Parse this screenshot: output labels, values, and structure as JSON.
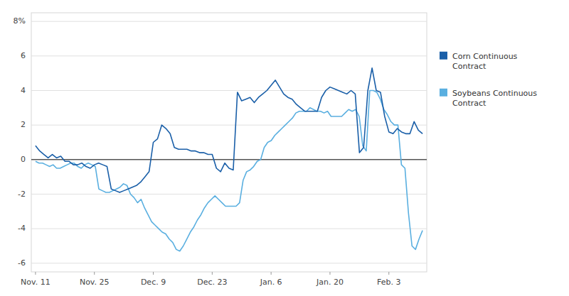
{
  "chart_data": {
    "type": "line",
    "xlim": [
      -1,
      93
    ],
    "xticks": [
      {
        "value": 0,
        "label": "Nov. 11"
      },
      {
        "value": 14,
        "label": "Nov. 25"
      },
      {
        "value": 28,
        "label": "Dec. 9"
      },
      {
        "value": 42,
        "label": "Dec. 23"
      },
      {
        "value": 56,
        "label": "Jan. 6"
      },
      {
        "value": 70,
        "label": "Jan. 20"
      },
      {
        "value": 84,
        "label": "Feb. 3"
      }
    ],
    "ylim": [
      -6.5,
      8.5
    ],
    "yticks": [
      -6,
      -4,
      -2,
      0,
      2,
      4,
      6,
      {
        "value": 8,
        "label": "8%"
      }
    ],
    "grid": true,
    "legend": "right",
    "series": [
      {
        "name": "Corn Continuous\nContract",
        "color": "#1a5fa8",
        "x": [
          0,
          1,
          2,
          3,
          4,
          5,
          6,
          7,
          8,
          9,
          10,
          11,
          12,
          13,
          14,
          15,
          16,
          17,
          18,
          19,
          20,
          21,
          22,
          23,
          24,
          25,
          26,
          27,
          28,
          29,
          30,
          31,
          32,
          33,
          34,
          35,
          36,
          37,
          38,
          39,
          40,
          41,
          42,
          43,
          44,
          45,
          46,
          47,
          48,
          49,
          50,
          51,
          52,
          53,
          54,
          55,
          56,
          57,
          58,
          59,
          60,
          61,
          62,
          63,
          64,
          65,
          66,
          67,
          68,
          69,
          70,
          71,
          72,
          73,
          74,
          75,
          76,
          77,
          78,
          79,
          80,
          81,
          82,
          83,
          84,
          85,
          86,
          87,
          88,
          89,
          90,
          91,
          92
        ],
        "values": [
          0.8,
          0.5,
          0.3,
          0.1,
          0.3,
          0.1,
          0.2,
          -0.1,
          -0.1,
          -0.3,
          -0.3,
          -0.2,
          -0.4,
          -0.5,
          -0.3,
          -0.2,
          -0.3,
          -0.4,
          -1.7,
          -1.8,
          -1.9,
          -1.8,
          -1.7,
          -1.6,
          -1.5,
          -1.3,
          -1.0,
          -0.7,
          1.0,
          1.2,
          2.0,
          1.8,
          1.5,
          0.7,
          0.6,
          0.6,
          0.6,
          0.5,
          0.5,
          0.4,
          0.4,
          0.3,
          0.3,
          -0.5,
          -0.7,
          -0.2,
          -0.5,
          -0.6,
          3.9,
          3.4,
          3.5,
          3.6,
          3.3,
          3.6,
          3.8,
          4.0,
          4.3,
          4.6,
          4.2,
          3.8,
          3.6,
          3.5,
          3.2,
          3.0,
          2.8,
          2.8,
          2.8,
          2.8,
          3.6,
          4.0,
          4.2,
          4.1,
          4.0,
          3.9,
          3.8,
          4.0,
          3.8,
          0.4,
          0.7,
          4.0,
          5.3,
          4.0,
          3.9,
          2.5,
          1.6,
          1.5,
          1.8,
          1.6,
          1.5,
          1.5,
          2.2,
          1.7,
          1.5
        ]
      },
      {
        "name": "Soybeans Continuous\nContract",
        "color": "#5aafe0",
        "x": [
          0,
          0.8364,
          1.6727,
          2.5091,
          3.3455,
          4.1818,
          5.0182,
          5.8545,
          6.6909,
          7.5273,
          8.3636,
          9.2,
          10.0364,
          10.8727,
          11.7091,
          12.5455,
          13.3818,
          14.2182,
          15.0545,
          15.8909,
          16.7273,
          17.5636,
          18.4,
          19.2364,
          20.0727,
          20.9091,
          21.7455,
          22.5818,
          23.4182,
          24.2545,
          25.0909,
          25.9273,
          26.7636,
          27.6,
          28.4364,
          29.2727,
          30.1091,
          30.9455,
          31.7818,
          32.6182,
          33.4545,
          34.2909,
          35.1273,
          35.9636,
          36.8,
          37.6364,
          38.4727,
          39.3091,
          40.1455,
          40.9818,
          41.8182,
          42.6545,
          43.4909,
          44.3273,
          45.1636,
          46,
          46.8364,
          47.6727,
          48.5091,
          49.3455,
          50.1818,
          51.0182,
          51.8545,
          52.6909,
          53.5273,
          54.3636,
          55.2,
          56.0364,
          56.8727,
          57.7091,
          58.5455,
          59.3818,
          60.2182,
          61.0545,
          61.8909,
          62.7273,
          63.5636,
          64.4,
          65.2364,
          66.0727,
          66.9091,
          67.7455,
          68.5818,
          69.4182,
          70.2545,
          71.0909,
          71.9273,
          72.7636,
          73.6,
          74.4364,
          75.2727,
          76.1091,
          76.9455,
          77.7818,
          78.6182,
          79.4545,
          80.2909,
          81.1273,
          81.9636,
          82.8,
          83.6364,
          84.4727,
          85.3091,
          86.1455,
          86.9818,
          87.8182,
          88.6545,
          89.4909,
          90.3273,
          91.1636,
          92
        ],
        "values": [
          -0.1,
          -0.2,
          -0.2,
          -0.3,
          -0.4,
          -0.3,
          -0.5,
          -0.5,
          -0.4,
          -0.3,
          -0.2,
          -0.2,
          -0.4,
          -0.5,
          -0.3,
          -0.2,
          -0.3,
          -0.4,
          -1.7,
          -1.8,
          -1.9,
          -1.9,
          -1.8,
          -1.7,
          -1.6,
          -1.4,
          -1.5,
          -2.0,
          -2.2,
          -2.5,
          -2.3,
          -2.8,
          -3.2,
          -3.6,
          -3.8,
          -4.0,
          -4.2,
          -4.3,
          -4.6,
          -4.8,
          -5.2,
          -5.3,
          -5.0,
          -4.6,
          -4.2,
          -3.9,
          -3.5,
          -3.2,
          -2.8,
          -2.5,
          -2.3,
          -2.1,
          -2.3,
          -2.5,
          -2.7,
          -2.7,
          -2.7,
          -2.7,
          -2.5,
          -1.2,
          -0.7,
          -0.6,
          -0.4,
          -0.1,
          0.0,
          0.7,
          1.0,
          1.1,
          1.4,
          1.6,
          1.8,
          2.0,
          2.2,
          2.4,
          2.7,
          2.8,
          2.8,
          2.8,
          3.0,
          2.9,
          2.8,
          2.8,
          2.7,
          2.8,
          2.5,
          2.5,
          2.5,
          2.5,
          2.7,
          2.9,
          2.8,
          2.9,
          2.5,
          0.8,
          0.5,
          4.0,
          4.0,
          3.9,
          3.5,
          2.9,
          2.6,
          2.2,
          2.0,
          2.0,
          -0.3,
          -0.5,
          -3.1,
          -5.0,
          -5.2,
          -4.6,
          -4.1
        ]
      }
    ]
  }
}
